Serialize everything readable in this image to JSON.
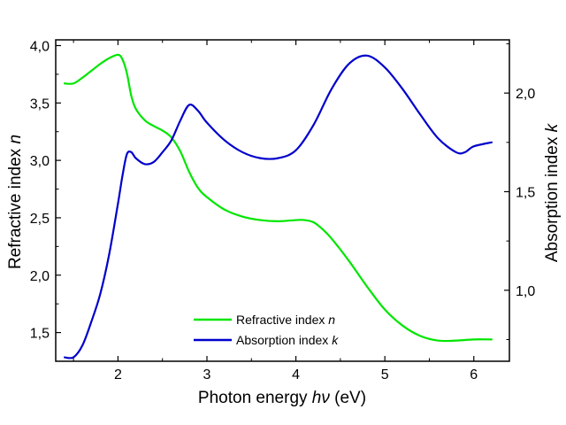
{
  "chart_data": {
    "type": "line",
    "title": "",
    "x_axis": {
      "label_parts": [
        {
          "text": "Photon energy ",
          "italic": false
        },
        {
          "text": "hν",
          "italic": true
        },
        {
          "text": " (eV)",
          "italic": false
        }
      ],
      "range": [
        1.3,
        6.4
      ],
      "ticks": [
        2,
        3,
        4,
        5,
        6
      ],
      "tick_labels": [
        "2",
        "3",
        "4",
        "5",
        "6"
      ]
    },
    "y_left": {
      "label_parts": [
        {
          "text": "Refractive index ",
          "italic": false
        },
        {
          "text": "n",
          "italic": true
        }
      ],
      "range": [
        1.25,
        4.05
      ],
      "ticks": [
        1.5,
        2.0,
        2.5,
        3.0,
        3.5,
        4.0
      ],
      "tick_labels": [
        "1,5",
        "2,0",
        "2,5",
        "3,0",
        "3,5",
        "4,0"
      ]
    },
    "y_right": {
      "label_parts": [
        {
          "text": "Absorption index  ",
          "italic": false
        },
        {
          "text": "k",
          "italic": true
        }
      ],
      "range": [
        0.64,
        2.27
      ],
      "ticks": [
        1.0,
        1.5,
        2.0
      ],
      "tick_labels": [
        "1,0",
        "1,5",
        "2,0"
      ]
    },
    "grid": false,
    "legend": {
      "position": "bottom-center",
      "entries": [
        {
          "text": "Refractive index ",
          "italic_suffix": "n",
          "color": "#00e600"
        },
        {
          "text": "Absorption index ",
          "italic_suffix": "k",
          "color": "#0000cc"
        }
      ]
    },
    "series": [
      {
        "axis": "left",
        "color": "#00e600",
        "x": [
          1.4,
          1.5,
          1.6,
          1.7,
          1.8,
          1.9,
          2.0,
          2.05,
          2.1,
          2.15,
          2.2,
          2.3,
          2.4,
          2.5,
          2.6,
          2.7,
          2.8,
          2.9,
          3.0,
          3.2,
          3.4,
          3.6,
          3.8,
          4.0,
          4.1,
          4.2,
          4.3,
          4.4,
          4.6,
          4.8,
          5.0,
          5.2,
          5.4,
          5.6,
          5.8,
          6.0,
          6.2
        ],
        "y": [
          3.67,
          3.67,
          3.72,
          3.78,
          3.84,
          3.89,
          3.92,
          3.88,
          3.76,
          3.56,
          3.45,
          3.35,
          3.3,
          3.26,
          3.2,
          3.08,
          2.9,
          2.76,
          2.68,
          2.57,
          2.51,
          2.48,
          2.47,
          2.48,
          2.48,
          2.46,
          2.4,
          2.32,
          2.12,
          1.9,
          1.7,
          1.56,
          1.47,
          1.43,
          1.43,
          1.44,
          1.44
        ]
      },
      {
        "axis": "right",
        "color": "#0000cc",
        "x": [
          1.4,
          1.5,
          1.6,
          1.7,
          1.8,
          1.9,
          2.0,
          2.05,
          2.1,
          2.15,
          2.2,
          2.3,
          2.4,
          2.5,
          2.6,
          2.7,
          2.8,
          2.9,
          3.0,
          3.2,
          3.4,
          3.6,
          3.8,
          4.0,
          4.2,
          4.4,
          4.6,
          4.8,
          5.0,
          5.2,
          5.4,
          5.6,
          5.8,
          5.9,
          6.0,
          6.2
        ],
        "y": [
          0.66,
          0.66,
          0.72,
          0.84,
          0.98,
          1.18,
          1.44,
          1.58,
          1.69,
          1.7,
          1.67,
          1.64,
          1.65,
          1.7,
          1.76,
          1.86,
          1.94,
          1.91,
          1.85,
          1.76,
          1.7,
          1.67,
          1.67,
          1.71,
          1.84,
          2.02,
          2.15,
          2.19,
          2.13,
          2.02,
          1.89,
          1.77,
          1.7,
          1.7,
          1.73,
          1.75
        ]
      }
    ]
  }
}
